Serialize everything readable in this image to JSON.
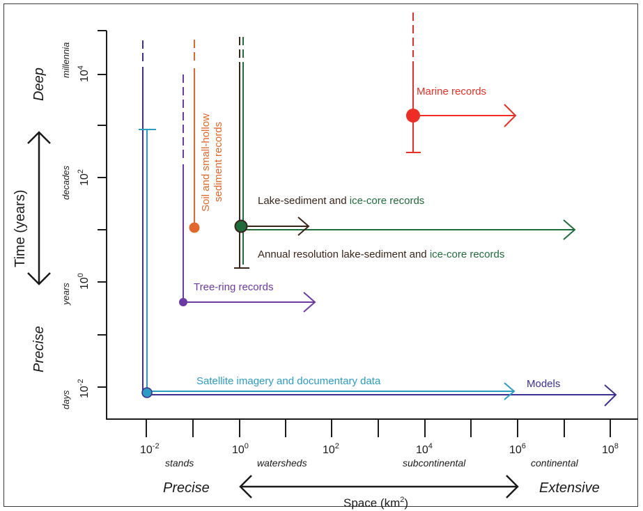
{
  "colors": {
    "axis": "#1a1a1a",
    "deep_blue": "#3b2f8f",
    "light_blue": "#2b9cc4",
    "purple": "#6b3aa8",
    "orange": "#e2672a",
    "dark_green": "#1f6b3a",
    "dark_brown": "#3a2418",
    "red": "#ee2d24"
  },
  "axes": {
    "y_title": "Time (years)",
    "y_left_top": "Deep",
    "y_left_bottom": "Precise",
    "y_ticks": [
      {
        "base": "10",
        "exp": "4",
        "period": "millennia"
      },
      {
        "base": "10",
        "exp": "2",
        "period": "decades"
      },
      {
        "base": "10",
        "exp": "0",
        "period": "years"
      },
      {
        "base": "10",
        "exp": "-2",
        "period": "days"
      }
    ],
    "x_ticks": [
      {
        "base": "10",
        "exp": "-2"
      },
      {
        "base": "10",
        "exp": "0"
      },
      {
        "base": "10",
        "exp": "2"
      },
      {
        "base": "10",
        "exp": "4"
      },
      {
        "base": "10",
        "exp": "6"
      },
      {
        "base": "10",
        "exp": "8"
      }
    ],
    "x_scale_words": [
      "stands",
      "watersheds",
      "subcontinental",
      "continental"
    ],
    "x_left": "Precise",
    "x_right": "Extensive",
    "x_title": "Space (km",
    "x_title_sup": "2",
    "x_title_close": ")"
  },
  "labels": {
    "marine": "Marine records",
    "soil_line1": "Soil and small-hollow",
    "soil_line2": "sediment records",
    "lake_part1": "Lake-sediment and ",
    "lake_part2": "ice-core records",
    "annual_part1": "Annual resolution lake-sediment and ",
    "annual_part2": "ice-core records",
    "tree_ring": "Tree-ring records",
    "satellite": "Satellite imagery and documentary data",
    "models": "Models"
  }
}
